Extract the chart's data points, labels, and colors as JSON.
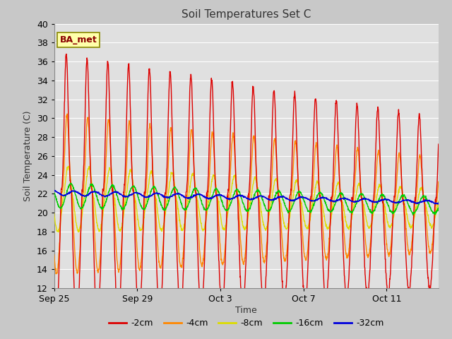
{
  "title": "Soil Temperatures Set C",
  "xlabel": "Time",
  "ylabel": "Soil Temperature (C)",
  "ylim": [
    12,
    40
  ],
  "yticks": [
    12,
    14,
    16,
    18,
    20,
    22,
    24,
    26,
    28,
    30,
    32,
    34,
    36,
    38,
    40
  ],
  "xlim_days": [
    0,
    18.5
  ],
  "x_tick_labels": [
    "Sep 25",
    "Sep 29",
    "Oct 3",
    "Oct 7",
    "Oct 11"
  ],
  "x_tick_positions": [
    0,
    4,
    8,
    12,
    16
  ],
  "annotation_text": "BA_met",
  "line_colors": {
    "-2cm": "#dd0000",
    "-4cm": "#ff8800",
    "-8cm": "#dddd00",
    "-16cm": "#00cc00",
    "-32cm": "#0000dd"
  },
  "legend_labels": [
    "-2cm",
    "-4cm",
    "-8cm",
    "-16cm",
    "-32cm"
  ],
  "background_color": "#c8c8c8",
  "plot_bg_color": "#e0e0e0",
  "grid_color": "#ffffff"
}
